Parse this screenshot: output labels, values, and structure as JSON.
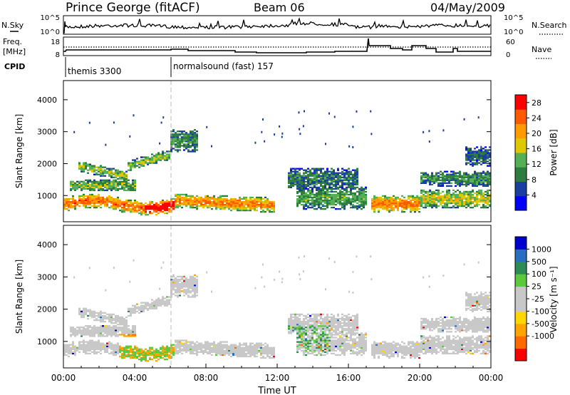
{
  "header": {
    "station": "Prince George (fitACF)",
    "beam": "Beam 06",
    "date": "04/May/2009"
  },
  "top_panels": {
    "nsky": {
      "label": "N.Sky",
      "tick_hi": "10^5",
      "tick_lo": "10^0"
    },
    "nsearch": {
      "label": "N.Search",
      "tick_hi": "10^5",
      "tick_lo": "10^0"
    },
    "freq": {
      "label_line1": "Freq.",
      "label_line2": "[MHz]",
      "ticks": [
        "18",
        "8"
      ]
    },
    "nave": {
      "label": "Nave",
      "ticks": [
        "60",
        "0"
      ]
    },
    "cpid": {
      "label": "CPID",
      "modes": [
        {
          "name": "themis 3300",
          "start_hour": 0
        },
        {
          "name": "normalsound (fast) 157",
          "start_hour": 6
        }
      ]
    }
  },
  "colors": {
    "power_scale": [
      "#0000ff",
      "#1a3fa0",
      "#2e7d3f",
      "#55b055",
      "#e0c800",
      "#ff9a00",
      "#ff5a00",
      "#ff0000"
    ],
    "velocity_scale": [
      "#ff0000",
      "#ff6a00",
      "#ffa500",
      "#ffd700",
      "#c8c8c8",
      "#c8c8c8",
      "#5cc83c",
      "#2e8b57",
      "#2a6fbf",
      "#0000cc"
    ]
  },
  "chart_data": [
    {
      "type": "heatmap",
      "panel": "power",
      "ylabel": "Slant Range [km]",
      "xlabel": "",
      "ylim": [
        180,
        4600
      ],
      "yticks": [
        "1000",
        "2000",
        "3000",
        "4000"
      ],
      "ytick_values": [
        1000,
        2000,
        3000,
        4000
      ],
      "xlim_hours": [
        0,
        24
      ],
      "colorbar": {
        "label": "Power [dB]",
        "ticks": [
          "4",
          "8",
          "12",
          "16",
          "20",
          "24",
          "28"
        ],
        "range": [
          0,
          30
        ]
      }
    },
    {
      "type": "heatmap",
      "panel": "velocity",
      "ylabel": "Slant Range [km]",
      "xlabel": "Time UT",
      "ylim": [
        180,
        4600
      ],
      "yticks": [
        "1000",
        "2000",
        "3000",
        "4000"
      ],
      "ytick_values": [
        1000,
        2000,
        3000,
        4000
      ],
      "xlim_hours": [
        0,
        24
      ],
      "xticks": [
        "00:00",
        "04:00",
        "08:00",
        "12:00",
        "16:00",
        "20:00",
        "00:00"
      ],
      "xtick_hours": [
        0,
        4,
        8,
        12,
        16,
        20,
        24
      ],
      "colorbar": {
        "label": "Velocity [m s⁻¹]",
        "ticks": [
          "1000",
          "500",
          "100",
          "25",
          "-25",
          "-100",
          "-500",
          "-1000"
        ]
      }
    }
  ]
}
